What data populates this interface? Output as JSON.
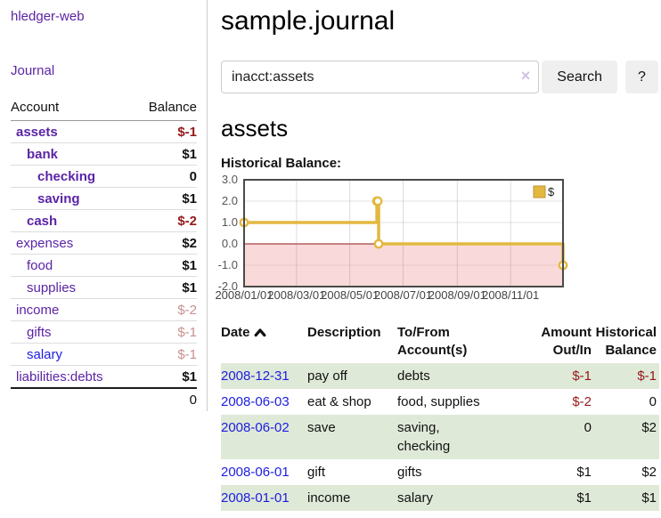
{
  "app": {
    "title": "hledger-web",
    "nav_journal": "Journal"
  },
  "colors": {
    "purple": "#5b24a5",
    "blue": "#1d1de0",
    "negative": "#941818",
    "negative_faded": "#c9908f",
    "row_green": "#dfe9d8",
    "button_bg": "#efefef"
  },
  "sidebar": {
    "header": {
      "account": "Account",
      "balance": "Balance"
    },
    "accounts": [
      {
        "name": "assets",
        "balance": "$-1",
        "indent": 1,
        "bold": true,
        "balance_style": "neg"
      },
      {
        "name": "bank",
        "balance": "$1",
        "indent": 2,
        "bold": true,
        "balance_style": "pos"
      },
      {
        "name": "checking",
        "balance": "0",
        "indent": 3,
        "bold": true,
        "balance_style": "pos"
      },
      {
        "name": "saving",
        "balance": "$1",
        "indent": 3,
        "bold": true,
        "balance_style": "pos"
      },
      {
        "name": "cash",
        "balance": "$-2",
        "indent": 2,
        "bold": true,
        "balance_style": "neg"
      },
      {
        "name": "expenses",
        "balance": "$2",
        "indent": 1,
        "bold": false,
        "balance_style": "pos"
      },
      {
        "name": "food",
        "balance": "$1",
        "indent": 2,
        "bold": false,
        "balance_style": "pos"
      },
      {
        "name": "supplies",
        "balance": "$1",
        "indent": 2,
        "bold": false,
        "balance_style": "pos"
      },
      {
        "name": "income",
        "balance": "$-2",
        "indent": 1,
        "bold": false,
        "balance_style": "negfaded"
      },
      {
        "name": "gifts",
        "balance": "$-1",
        "indent": 2,
        "bold": false,
        "balance_style": "negfaded"
      },
      {
        "name": "salary",
        "balance": "$-1",
        "indent": 2,
        "bold": false,
        "balance_style": "negfaded",
        "link": "blue"
      },
      {
        "name": "liabilities:debts",
        "balance": "$1",
        "indent": 1,
        "bold": false,
        "balance_style": "pos"
      }
    ],
    "total": "0"
  },
  "main": {
    "title": "sample.journal",
    "heading": "assets",
    "chart_label": "Historical Balance:"
  },
  "search": {
    "value": "inacct:assets",
    "clear": "×",
    "button": "Search",
    "help": "?"
  },
  "chart_data": {
    "type": "line",
    "title": "Historical Balance:",
    "step": "after",
    "series": [
      {
        "name": "$",
        "points": [
          {
            "date": "2008-01-01",
            "value": 1
          },
          {
            "date": "2008-06-01",
            "value": 2
          },
          {
            "date": "2008-06-02",
            "value": 2
          },
          {
            "date": "2008-06-03",
            "value": 0
          },
          {
            "date": "2008-12-31",
            "value": -1
          }
        ]
      }
    ],
    "ylim": [
      -2,
      3
    ],
    "yticks": [
      3.0,
      2.0,
      1.0,
      0.0,
      -1.0,
      -2.0
    ],
    "xrange": [
      "2008-01-01",
      "2008-12-31"
    ],
    "xticks": [
      {
        "date": "2008-01-01",
        "label": "2008/01/01"
      },
      {
        "date": "2008-03-01",
        "label": "2008/03/01"
      },
      {
        "date": "2008-05-01",
        "label": "2008/05/01"
      },
      {
        "date": "2008-07-01",
        "label": "2008/07/01"
      },
      {
        "date": "2008-09-01",
        "label": "2008/09/01"
      },
      {
        "date": "2008-11-01",
        "label": "2008/11/01"
      }
    ],
    "legend_position": "top-right",
    "grid": true,
    "negative_region_shaded": true,
    "colors": {
      "line": "#e3b840",
      "marker_fill": "#ffffff",
      "negative_fill": "#f9d9d9",
      "zero_line": "#8d1717",
      "border": "#4a4a4a",
      "grid": "#e2e2e2",
      "grid_negative": "#eec7c7",
      "legend_border": "#bd962f"
    }
  },
  "table": {
    "headers": {
      "date": "Date",
      "description": "Description",
      "tofrom": "To/From\nAccount(s)",
      "amount": "Amount\nOut/In",
      "balance": "Historical\nBalance"
    },
    "rows": [
      {
        "date": "2008-12-31",
        "description": "pay off",
        "tofrom": "debts",
        "amount": "$-1",
        "balance": "$-1"
      },
      {
        "date": "2008-06-03",
        "description": "eat & shop",
        "tofrom": "food, supplies",
        "amount": "$-2",
        "balance": "0"
      },
      {
        "date": "2008-06-02",
        "description": "save",
        "tofrom": "saving,\nchecking",
        "amount": "0",
        "balance": "$2"
      },
      {
        "date": "2008-06-01",
        "description": "gift",
        "tofrom": "gifts",
        "amount": "$1",
        "balance": "$2"
      },
      {
        "date": "2008-01-01",
        "description": "income",
        "tofrom": "salary",
        "amount": "$1",
        "balance": "$1"
      }
    ]
  }
}
